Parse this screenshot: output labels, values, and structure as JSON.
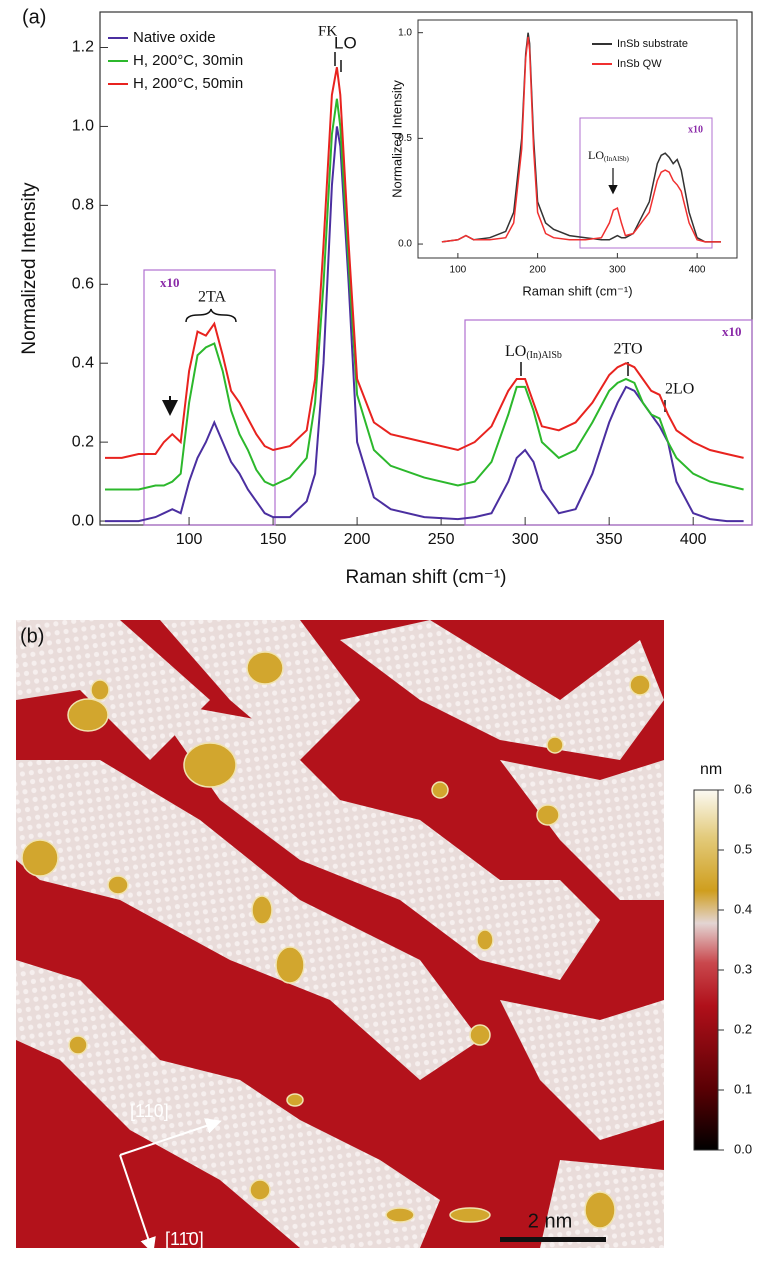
{
  "chart_data": [
    {
      "type": "line",
      "panel_label": "(a)",
      "x_label": "Raman shift (cm⁻¹)",
      "y_label": "Normalized Intensity",
      "xlim": [
        47,
        435
      ],
      "ylim": [
        -0.01,
        1.29
      ],
      "xticks": [
        100,
        150,
        200,
        250,
        300,
        350,
        400
      ],
      "yticks": [
        {
          "value": 0,
          "label": "0.0"
        },
        0.2,
        0.4,
        0.6,
        0.8,
        {
          "value": 1,
          "label": "1.0"
        },
        1.2
      ],
      "legend": "upper left",
      "x": [
        50,
        60,
        70,
        80,
        85,
        90,
        95,
        100,
        105,
        110,
        115,
        120,
        125,
        130,
        135,
        140,
        145,
        150,
        160,
        170,
        175,
        180,
        185,
        188,
        190,
        195,
        200,
        210,
        220,
        240,
        260,
        270,
        280,
        290,
        295,
        300,
        305,
        310,
        320,
        330,
        340,
        350,
        355,
        360,
        365,
        370,
        375,
        380,
        385,
        390,
        400,
        410,
        420,
        430
      ],
      "series": [
        {
          "name": "Native oxide",
          "color": "#4b2fa0",
          "values": [
            0,
            0,
            0,
            0.01,
            0.02,
            0.03,
            0.02,
            0.1,
            0.16,
            0.2,
            0.25,
            0.2,
            0.15,
            0.12,
            0.08,
            0.05,
            0.02,
            0.01,
            0.01,
            0.05,
            0.12,
            0.4,
            0.85,
            1.0,
            0.95,
            0.6,
            0.2,
            0.06,
            0.03,
            0.01,
            0.005,
            0.01,
            0.02,
            0.1,
            0.16,
            0.18,
            0.15,
            0.08,
            0.02,
            0.03,
            0.12,
            0.25,
            0.3,
            0.34,
            0.33,
            0.3,
            0.27,
            0.24,
            0.2,
            0.1,
            0.02,
            0.005,
            0,
            0
          ]
        },
        {
          "name": "H, 200°C, 30min",
          "color": "#2cb82c",
          "values": [
            0.08,
            0.08,
            0.08,
            0.09,
            0.09,
            0.1,
            0.12,
            0.3,
            0.42,
            0.44,
            0.45,
            0.38,
            0.28,
            0.22,
            0.18,
            0.13,
            0.1,
            0.09,
            0.11,
            0.16,
            0.3,
            0.6,
            0.98,
            1.07,
            1.0,
            0.65,
            0.32,
            0.18,
            0.14,
            0.11,
            0.09,
            0.1,
            0.15,
            0.27,
            0.34,
            0.34,
            0.28,
            0.2,
            0.16,
            0.18,
            0.25,
            0.33,
            0.35,
            0.36,
            0.35,
            0.3,
            0.27,
            0.26,
            0.2,
            0.16,
            0.12,
            0.1,
            0.09,
            0.08
          ]
        },
        {
          "name": "H, 200°C, 50min",
          "color": "#e8231f",
          "values": [
            0.16,
            0.16,
            0.17,
            0.17,
            0.2,
            0.22,
            0.2,
            0.38,
            0.48,
            0.47,
            0.5,
            0.42,
            0.33,
            0.3,
            0.26,
            0.22,
            0.19,
            0.18,
            0.19,
            0.23,
            0.36,
            0.7,
            1.08,
            1.15,
            1.08,
            0.7,
            0.36,
            0.25,
            0.22,
            0.2,
            0.18,
            0.2,
            0.24,
            0.33,
            0.36,
            0.36,
            0.3,
            0.24,
            0.23,
            0.25,
            0.3,
            0.37,
            0.39,
            0.4,
            0.39,
            0.36,
            0.33,
            0.32,
            0.27,
            0.23,
            0.2,
            0.18,
            0.17,
            0.16
          ]
        }
      ],
      "annotations": {
        "fk": "FK",
        "lo": "LO",
        "ta": "2TA",
        "x10": "x10",
        "lo_alsb": "LO",
        "lo_alsb_sub": "(In)AlSb",
        "to": "2TO",
        "lo2": "2LO"
      }
    },
    {
      "type": "line",
      "x_label": "Raman shift (cm⁻¹)",
      "y_label": "Normalized Intensity",
      "xlim": [
        50,
        450
      ],
      "ylim": [
        -0.066,
        1.06
      ],
      "xticks": [
        100,
        200,
        300,
        400
      ],
      "yticks": [
        {
          "value": 0,
          "label": "0.0"
        },
        0.5,
        {
          "value": 1,
          "label": "1.0"
        }
      ],
      "legend": "upper right",
      "x": [
        80,
        100,
        110,
        120,
        140,
        160,
        170,
        180,
        185,
        188,
        190,
        195,
        200,
        210,
        220,
        240,
        260,
        280,
        290,
        295,
        300,
        305,
        310,
        320,
        340,
        350,
        355,
        360,
        365,
        370,
        375,
        380,
        390,
        400,
        410,
        420,
        430
      ],
      "series": [
        {
          "name": "InSb substrate",
          "color": "#333333",
          "values": [
            0.01,
            0.02,
            0.04,
            0.02,
            0.03,
            0.06,
            0.15,
            0.5,
            0.9,
            1.0,
            0.95,
            0.5,
            0.2,
            0.1,
            0.07,
            0.04,
            0.03,
            0.02,
            0.02,
            0.03,
            0.04,
            0.03,
            0.03,
            0.05,
            0.2,
            0.38,
            0.42,
            0.43,
            0.41,
            0.38,
            0.4,
            0.35,
            0.15,
            0.03,
            0.01,
            0.01,
            0.01
          ]
        },
        {
          "name": "InSb QW",
          "color": "#f03030",
          "values": [
            0.01,
            0.02,
            0.04,
            0.02,
            0.02,
            0.03,
            0.1,
            0.45,
            0.88,
            0.98,
            0.92,
            0.45,
            0.15,
            0.05,
            0.03,
            0.02,
            0.02,
            0.03,
            0.1,
            0.16,
            0.17,
            0.1,
            0.04,
            0.05,
            0.15,
            0.3,
            0.34,
            0.35,
            0.34,
            0.3,
            0.28,
            0.25,
            0.1,
            0.02,
            0.01,
            0.01,
            0.01
          ]
        }
      ],
      "annotations": {
        "x10": "x10",
        "lo": "LO",
        "lo_sub": "(InAlSb)"
      }
    }
  ],
  "figure_b": {
    "panel_label": "(b)",
    "dir1": "[110]",
    "dir2": "[11̄0]",
    "scale_bar": "2 nm",
    "colorbar": {
      "unit": "nm",
      "lim": [
        0,
        0.6
      ],
      "ticks": [
        {
          "value": 0,
          "label": "0.0"
        },
        0.1,
        0.2,
        0.3,
        0.4,
        0.5,
        0.6
      ]
    }
  }
}
